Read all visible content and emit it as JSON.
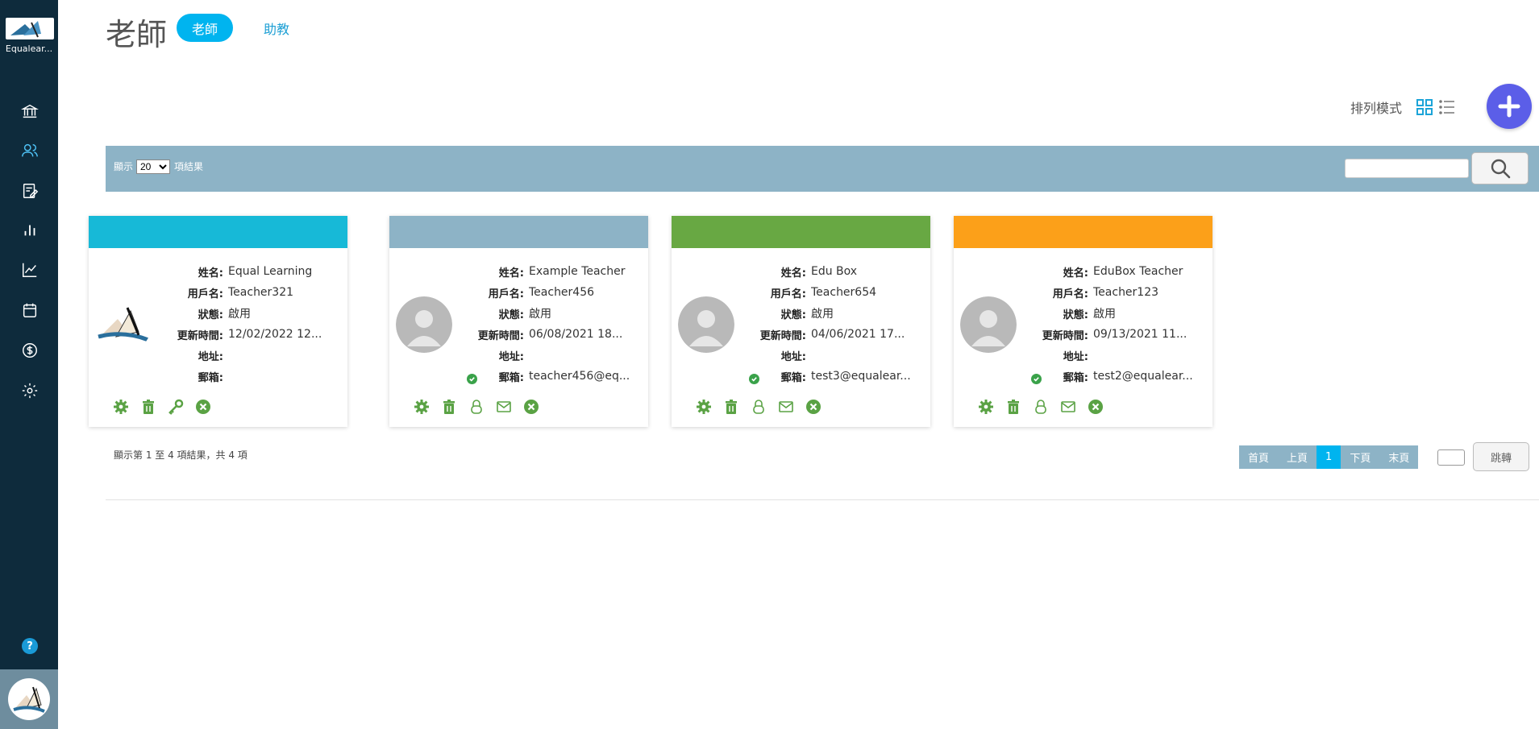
{
  "app": {
    "logo_text": "Equalear..."
  },
  "header": {
    "title": "老師",
    "tabs": [
      {
        "label": "老師",
        "active": true
      },
      {
        "label": "助教",
        "active": false
      }
    ],
    "sort_label": "排列模式"
  },
  "sidebar": {
    "items": [
      {
        "icon": "bank-icon"
      },
      {
        "icon": "users-icon",
        "active": true
      },
      {
        "icon": "edit-list-icon"
      },
      {
        "icon": "bar-chart-icon"
      },
      {
        "icon": "line-chart-icon"
      },
      {
        "icon": "calendar-icon"
      },
      {
        "icon": "dollar-icon"
      },
      {
        "icon": "gear-icon"
      }
    ],
    "help_label": "?"
  },
  "toolbar": {
    "show_label": "顯示",
    "page_size": "20",
    "page_size_options": [
      "20"
    ],
    "results_label": "項結果",
    "search_value": ""
  },
  "fields": {
    "name": "姓名:",
    "username": "用戶名:",
    "status": "狀態:",
    "updated": "更新時間:",
    "address": "地址:",
    "email": "郵箱:"
  },
  "cards": [
    {
      "color": "#17b9d7",
      "name": "Equal Learning",
      "username": "Teacher321",
      "status": "啟用",
      "updated": "12/02/2022 12...",
      "address": "",
      "email": "",
      "email_verified": false
    },
    {
      "color": "#8db3c6",
      "name": "Example Teacher",
      "username": "Teacher456",
      "status": "啟用",
      "updated": "06/08/2021 18...",
      "address": "",
      "email": "teacher456@eq...",
      "email_verified": true
    },
    {
      "color": "#68a843",
      "name": "Edu Box",
      "username": "Teacher654",
      "status": "啟用",
      "updated": "04/06/2021 17...",
      "address": "",
      "email": "test3@equalear...",
      "email_verified": true
    },
    {
      "color": "#fca019",
      "name": "EduBox Teacher",
      "username": "Teacher123",
      "status": "啟用",
      "updated": "09/13/2021 11...",
      "address": "",
      "email": "test2@equalear...",
      "email_verified": true
    }
  ],
  "footer": {
    "summary": "顯示第 1 至 4 項結果，共 4 項",
    "pager": {
      "first": "首頁",
      "prev": "上頁",
      "current": "1",
      "next": "下頁",
      "last": "末頁"
    },
    "jump_label": "跳轉"
  },
  "colors": {
    "accent": "#00b4ef",
    "sidebar": "#0e2b3c",
    "toolbar": "#8db3c6",
    "action_green": "#5aa244",
    "add_button": "#5b5ee8"
  }
}
